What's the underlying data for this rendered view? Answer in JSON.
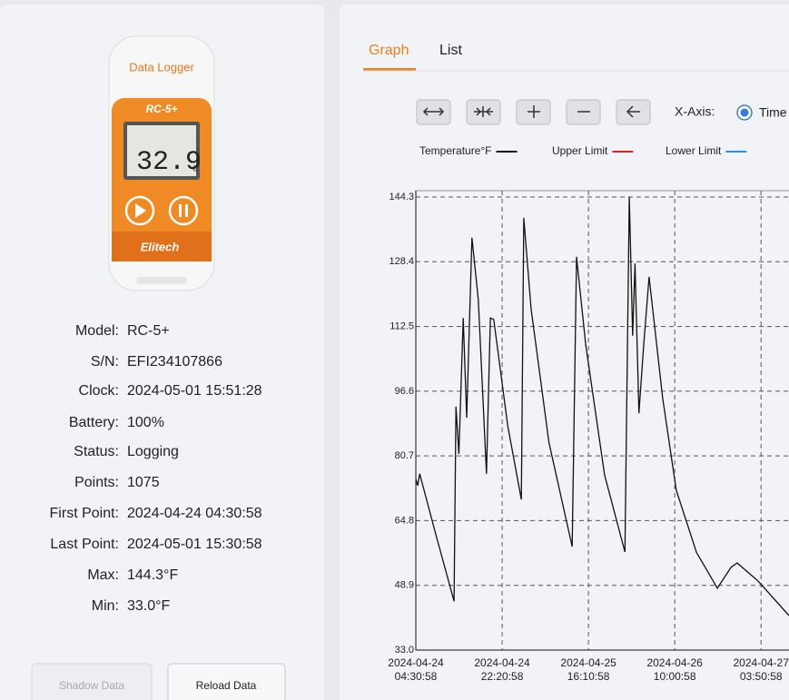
{
  "device": {
    "label": "Data Logger",
    "model_badge": "RC-5+",
    "display": "32.9",
    "unit": "C",
    "brand": "Elitech"
  },
  "info": [
    {
      "label": "Model:",
      "value": "RC-5+"
    },
    {
      "label": "S/N:",
      "value": "EFI234107866"
    },
    {
      "label": "Clock:",
      "value": "2024-05-01 15:51:28"
    },
    {
      "label": "Battery:",
      "value": "100%"
    },
    {
      "label": "Status:",
      "value": "Logging"
    },
    {
      "label": "Points:",
      "value": "1075"
    },
    {
      "label": "First Point:",
      "value": "2024-04-24 04:30:58"
    },
    {
      "label": "Last Point:",
      "value": "2024-05-01 15:30:58"
    },
    {
      "label": "Max:",
      "value": "144.3°F"
    },
    {
      "label": "Min:",
      "value": "33.0°F"
    }
  ],
  "buttons": [
    "Shadow Data",
    "Reload Data"
  ],
  "tabs": [
    "Graph",
    "List"
  ],
  "xaxis_label": "X-Axis:",
  "xaxis_option": "Time",
  "chart_data": {
    "type": "line",
    "x": [
      "2024-04-24 04:30:58",
      "2024-04-24 04:54:58",
      "2024-04-24 05:18:58",
      "2024-04-24 08:30:58",
      "2024-04-24 12:24:58",
      "2024-04-24 12:48:58",
      "2024-04-24 13:24:58",
      "2024-04-24 14:18:58",
      "2024-04-24 15:00:58",
      "2024-04-24 16:06:58",
      "2024-04-24 17:24:58",
      "2024-04-24 19:06:58",
      "2024-04-24 19:54:58",
      "2024-04-24 20:36:58",
      "2024-04-24 23:30:58",
      "2024-04-25 02:18:58",
      "2024-04-25 02:48:58",
      "2024-04-25 04:18:58",
      "2024-04-25 08:00:58",
      "2024-04-25 12:48:58",
      "2024-04-25 13:42:58",
      "2024-04-25 15:36:58",
      "2024-04-25 19:30:58",
      "2024-04-25 23:42:58",
      "2024-04-26 00:36:58",
      "2024-04-26 01:18:58",
      "2024-04-26 01:48:58",
      "2024-04-26 02:36:58",
      "2024-04-26 03:36:58",
      "2024-04-26 04:42:58",
      "2024-04-26 07:30:58",
      "2024-04-26 10:18:58",
      "2024-04-26 14:30:58",
      "2024-04-26 18:48:58",
      "2024-04-26 21:36:58",
      "2024-04-26 22:54:58",
      "2024-04-27 03:12:58",
      "2024-04-27 09:36:58"
    ],
    "series": [
      {
        "name": "Temperature°F",
        "color": "#111111",
        "values": [
          75.0,
          73.4,
          76.3,
          62.0,
          45.0,
          92.8,
          81.2,
          114.6,
          90.1,
          134.3,
          119.1,
          76.3,
          114.6,
          114.2,
          88.0,
          70.0,
          139.2,
          116.9,
          84.0,
          58.4,
          129.6,
          108.0,
          76.0,
          57.1,
          144.3,
          110.2,
          128.0,
          91.2,
          108.0,
          124.7,
          95.0,
          72.3,
          57.0,
          48.2,
          53.3,
          54.4,
          50.0,
          41.5
        ]
      }
    ],
    "limits": [
      {
        "name": "Upper Limit",
        "color": "#e02424"
      },
      {
        "name": "Lower Limit",
        "color": "#2b8fe0"
      }
    ],
    "ylim": [
      33,
      144.3
    ],
    "yticks": [
      {
        "value": 33,
        "label": "33.0"
      },
      48.9,
      64.8,
      80.7,
      96.6,
      112.5,
      128.4,
      144.3
    ],
    "xlim": [
      "2024-04-24 04:30:58",
      "2024-05-01 15:30:58"
    ],
    "xticks": [
      "2024-04-24 04:30:58",
      "2024-04-24 22:20:58",
      "2024-04-25 16:10:58",
      "2024-04-26 10:00:58",
      "2024-04-27 03:50:58"
    ],
    "grid": true
  }
}
